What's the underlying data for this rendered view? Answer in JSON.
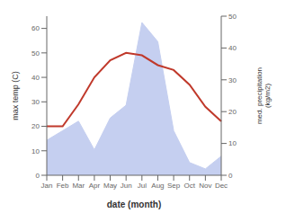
{
  "chart_data": {
    "type": "line",
    "categories": [
      "Jan",
      "Feb",
      "Mar",
      "Apr",
      "May",
      "Jun",
      "Jul",
      "Aug",
      "Sep",
      "Oct",
      "Nov",
      "Dec"
    ],
    "series": [
      {
        "type": "area",
        "axis": "y2",
        "color": "#c5cff0",
        "values": [
          11,
          14,
          17,
          8,
          18,
          22,
          48,
          42,
          14,
          4,
          2,
          6
        ]
      },
      {
        "type": "line",
        "color": "#c0392b",
        "values": [
          20,
          20,
          29,
          40,
          47,
          50,
          49,
          45,
          43,
          37,
          28,
          22
        ]
      }
    ],
    "xlabel": "date (month)",
    "ylabel": "max temp (C)",
    "y2label": "med. precipitation\n(kg/m2)",
    "ylim": [
      0,
      65
    ],
    "yticks": [
      0,
      10,
      20,
      30,
      40,
      50,
      60
    ],
    "y2lim": [
      0,
      50
    ],
    "y2ticks": [
      0,
      10,
      20,
      30,
      40,
      50
    ],
    "grid": false
  }
}
